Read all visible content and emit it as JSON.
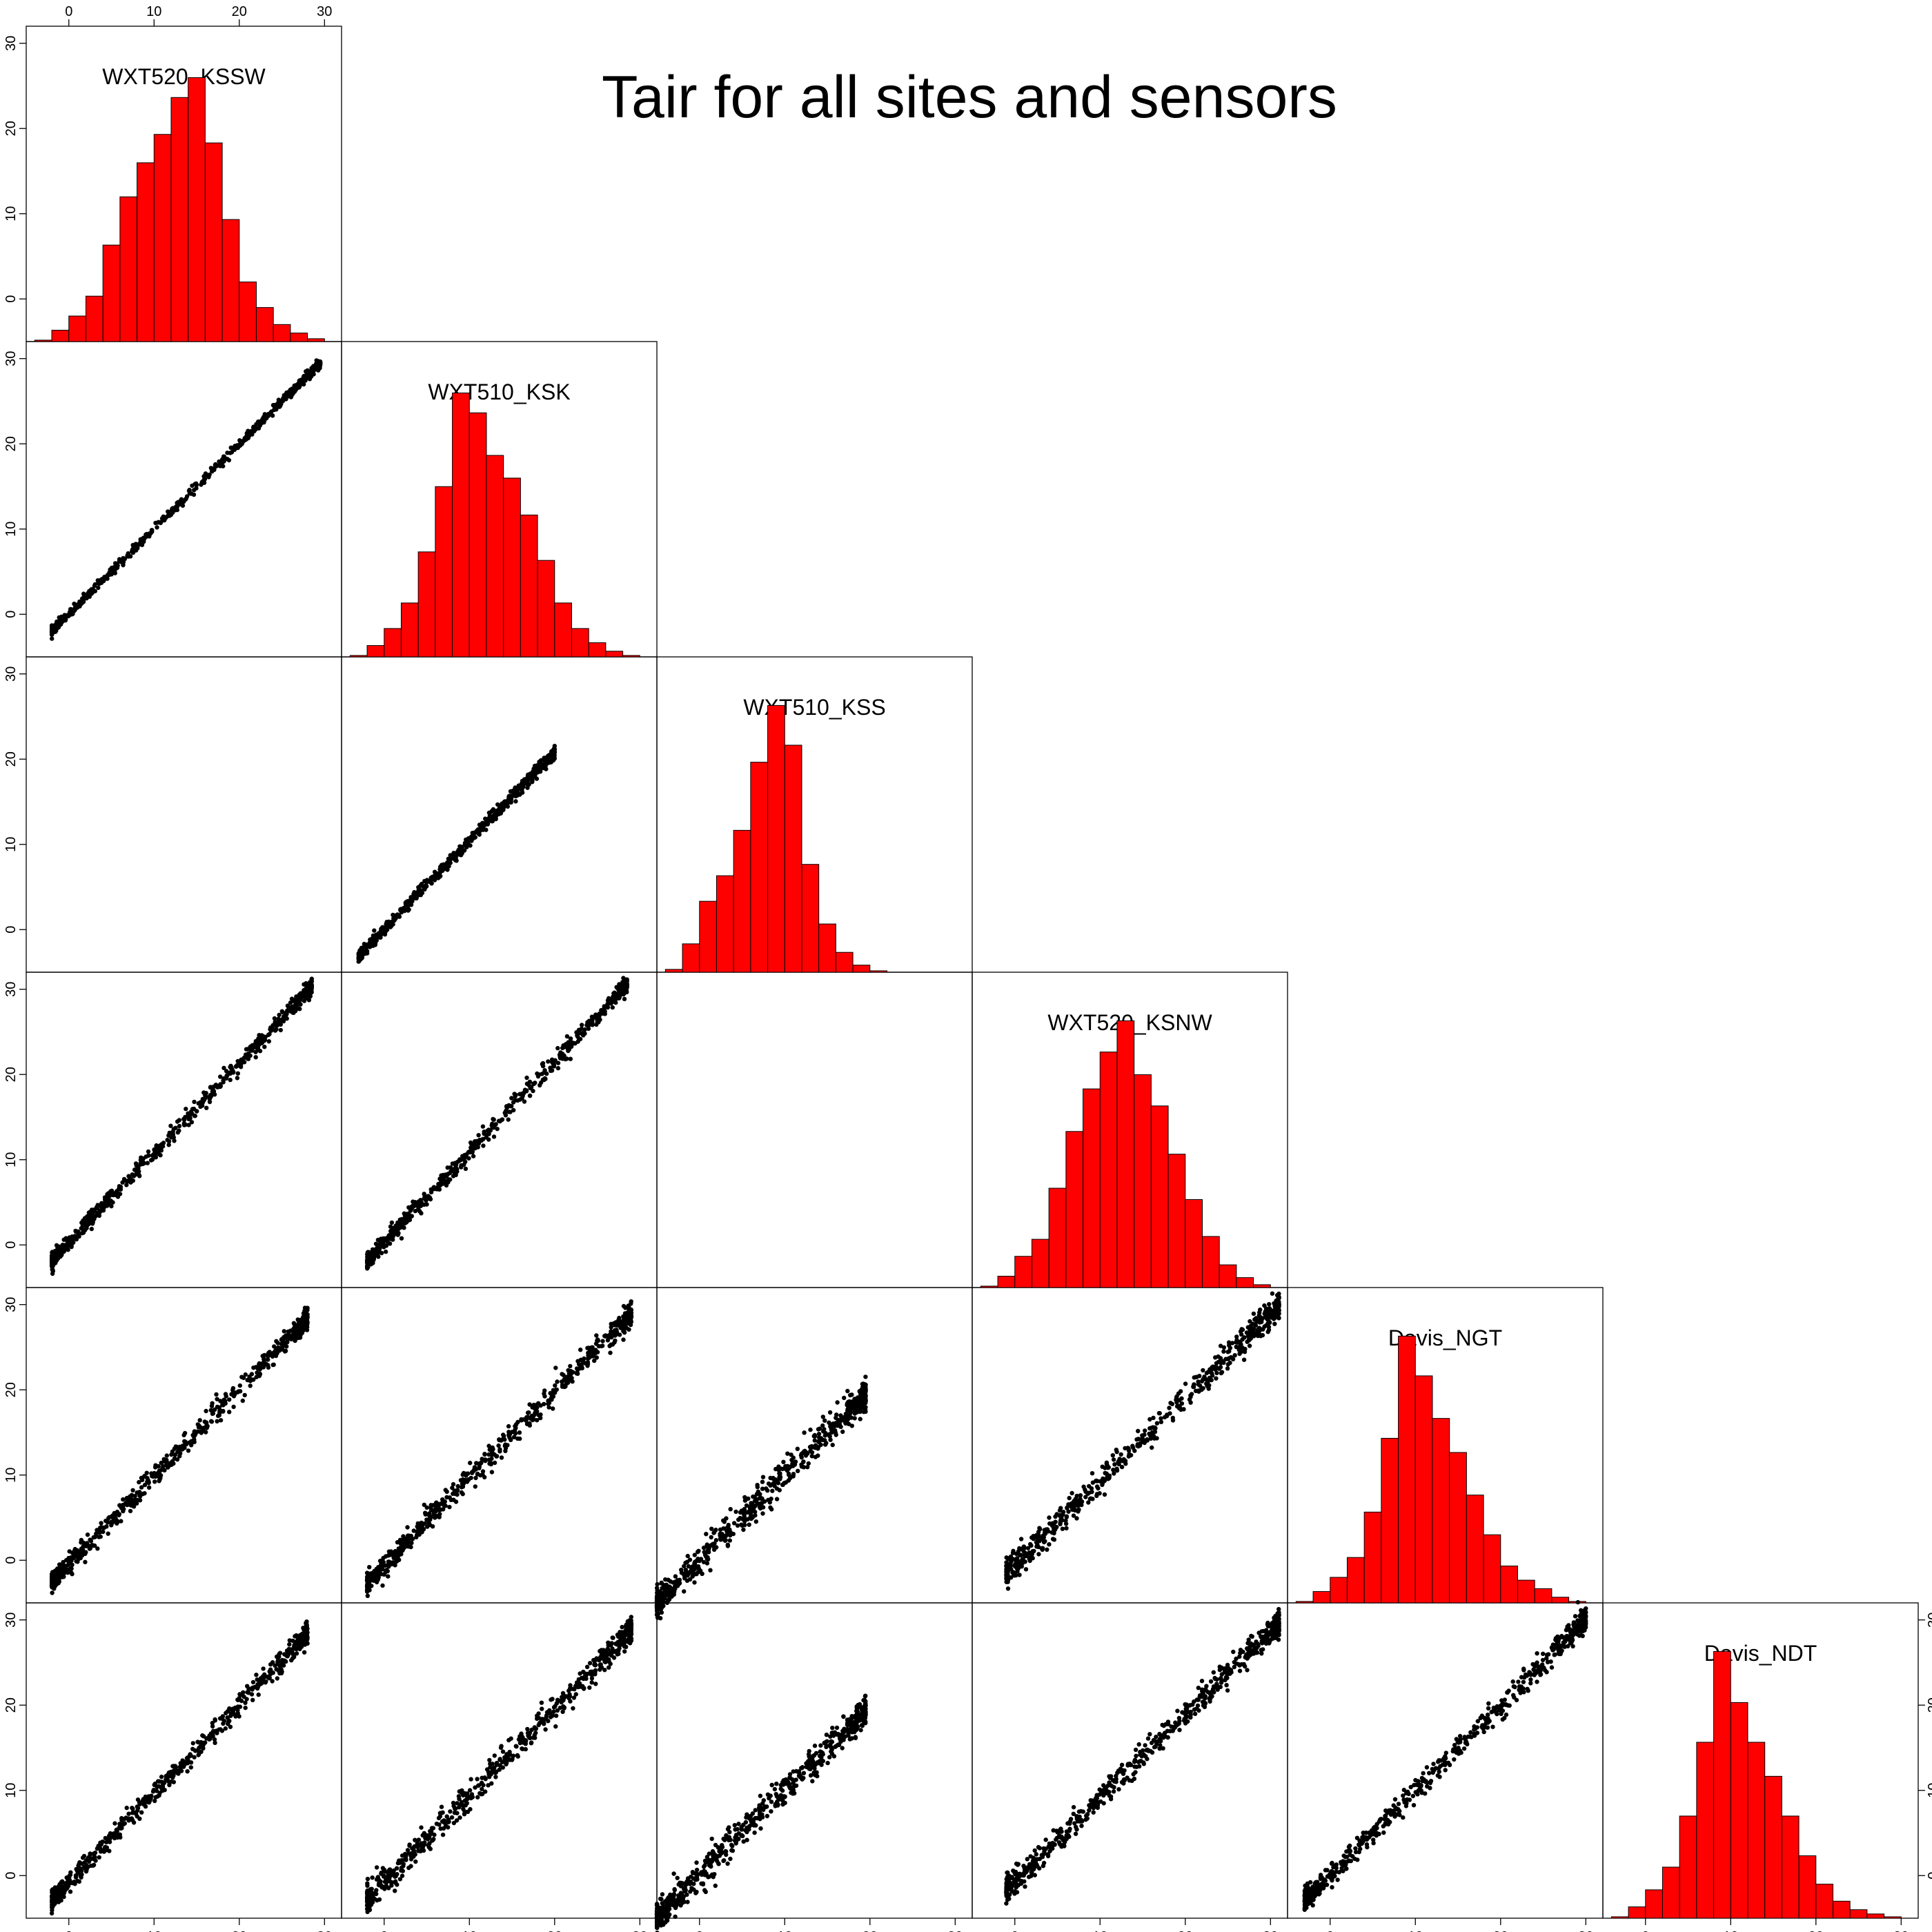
{
  "chart_data": {
    "type": "scatter",
    "title": "Tair for all sites and sensors",
    "variables": [
      "WXT520_KSSW",
      "WXT510_KSK",
      "WXT510_KSS",
      "WXT520_KSNW",
      "Davis_NGT",
      "Davis_NDT"
    ],
    "axis_range": [
      -5,
      32
    ],
    "ticks": [
      0,
      10,
      20,
      30
    ],
    "tick_labels": [
      "0",
      "10",
      "20",
      "30"
    ],
    "grid": false,
    "layout": "lower-triangle scatterplot matrix with histograms on the diagonal",
    "histogram_bins": [
      -4,
      -2,
      0,
      2,
      4,
      6,
      8,
      10,
      12,
      14,
      16,
      18,
      20,
      22,
      24,
      26,
      28,
      30
    ],
    "histogram_fraction": [
      [
        0.005,
        0.04,
        0.09,
        0.16,
        0.34,
        0.51,
        0.63,
        0.73,
        0.86,
        0.93,
        0.7,
        0.43,
        0.21,
        0.12,
        0.06,
        0.03,
        0.01
      ],
      [
        0.005,
        0.04,
        0.1,
        0.19,
        0.37,
        0.6,
        0.93,
        0.86,
        0.71,
        0.63,
        0.5,
        0.34,
        0.19,
        0.1,
        0.05,
        0.02,
        0.005
      ],
      [
        0.01,
        0.1,
        0.25,
        0.34,
        0.5,
        0.74,
        0.94,
        0.8,
        0.38,
        0.17,
        0.07,
        0.025,
        0.005,
        0,
        0,
        0,
        0
      ],
      [
        0.005,
        0.04,
        0.11,
        0.17,
        0.35,
        0.55,
        0.7,
        0.83,
        0.94,
        0.75,
        0.64,
        0.47,
        0.31,
        0.18,
        0.08,
        0.035,
        0.01
      ],
      [
        0.005,
        0.04,
        0.09,
        0.16,
        0.32,
        0.58,
        0.94,
        0.8,
        0.65,
        0.53,
        0.38,
        0.24,
        0.13,
        0.08,
        0.05,
        0.02,
        0.005
      ],
      [
        0.005,
        0.04,
        0.1,
        0.18,
        0.36,
        0.62,
        0.94,
        0.76,
        0.62,
        0.5,
        0.36,
        0.22,
        0.12,
        0.06,
        0.03,
        0.015,
        0.005
      ]
    ],
    "scatter_pairs": [
      {
        "x": "WXT520_KSSW",
        "y": "WXT510_KSK",
        "x_range": [
          -2,
          29.5
        ],
        "slope": 1.0,
        "intercept": 0,
        "spread": 0.25
      },
      {
        "x": "WXT510_KSK",
        "y": "WXT510_KSS",
        "x_range": [
          -3,
          20
        ],
        "slope": 1.04,
        "intercept": 0,
        "spread": 0.35
      },
      {
        "x": "WXT520_KSSW",
        "y": "WXT520_KSNW",
        "x_range": [
          -2,
          28.5
        ],
        "slope": 1.05,
        "intercept": 0.3,
        "spread": 0.5
      },
      {
        "x": "WXT510_KSK",
        "y": "WXT520_KSNW",
        "x_range": [
          -2,
          28.5
        ],
        "slope": 1.06,
        "intercept": 0.3,
        "spread": 0.5
      },
      {
        "x": "WXT520_KSSW",
        "y": "Davis_NGT",
        "x_range": [
          -2,
          28
        ],
        "slope": 1.03,
        "intercept": -0.5,
        "spread": 0.6
      },
      {
        "x": "WXT510_KSK",
        "y": "Davis_NGT",
        "x_range": [
          -2,
          29
        ],
        "slope": 1.02,
        "intercept": -0.6,
        "spread": 0.7
      },
      {
        "x": "WXT510_KSS",
        "y": "Davis_NGT",
        "x_range": [
          -5,
          19.5
        ],
        "slope": 1.0,
        "intercept": 0,
        "spread": 0.9
      },
      {
        "x": "WXT520_KSNW",
        "y": "Davis_NGT",
        "x_range": [
          -1,
          31
        ],
        "slope": 0.98,
        "intercept": -0.5,
        "spread": 0.8
      },
      {
        "x": "WXT520_KSSW",
        "y": "Davis_NDT",
        "x_range": [
          -2,
          28
        ],
        "slope": 1.04,
        "intercept": -0.8,
        "spread": 0.6
      },
      {
        "x": "WXT510_KSK",
        "y": "Davis_NDT",
        "x_range": [
          -2,
          29
        ],
        "slope": 1.02,
        "intercept": -0.8,
        "spread": 0.8
      },
      {
        "x": "WXT510_KSS",
        "y": "Davis_NDT",
        "x_range": [
          -5,
          19.5
        ],
        "slope": 1.0,
        "intercept": 0,
        "spread": 0.9
      },
      {
        "x": "WXT520_KSNW",
        "y": "Davis_NDT",
        "x_range": [
          -1,
          31
        ],
        "slope": 0.98,
        "intercept": -0.7,
        "spread": 0.7
      },
      {
        "x": "Davis_NGT",
        "y": "Davis_NDT",
        "x_range": [
          -3,
          30
        ],
        "slope": 1.0,
        "intercept": 0,
        "spread": 0.7
      }
    ],
    "empty_pairs": [
      {
        "x": "WXT520_KSSW",
        "y": "WXT510_KSS"
      },
      {
        "x": "WXT510_KSS",
        "y": "WXT520_KSNW"
      }
    ]
  }
}
